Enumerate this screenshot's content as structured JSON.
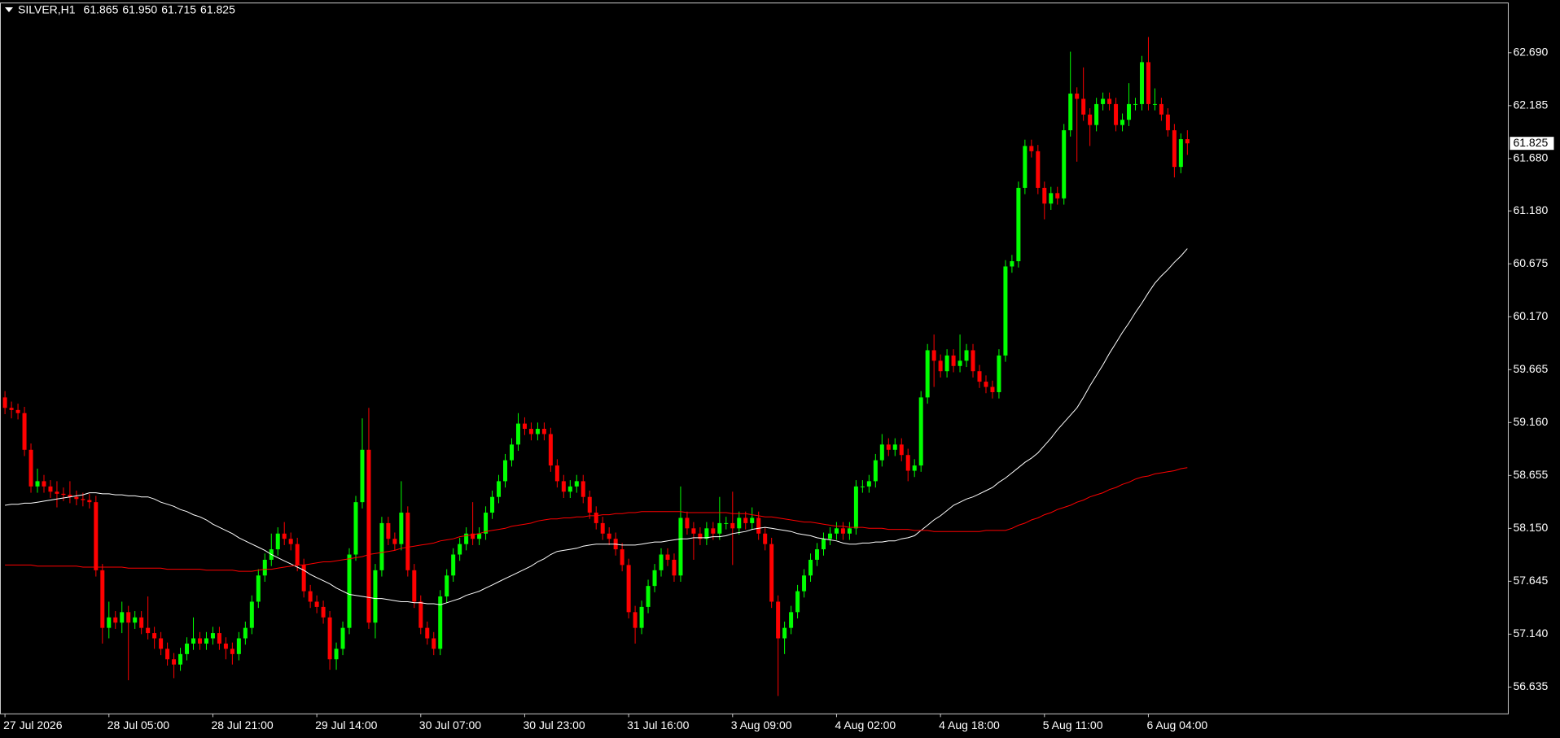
{
  "chart_data": {
    "type": "candlestick",
    "title": "SILVER,H1",
    "header_values": [
      "61.865",
      "61.950",
      "61.715",
      "61.825"
    ],
    "categories": [
      "27 Jul 2026",
      null,
      null,
      null,
      null,
      null,
      null,
      null,
      null,
      null,
      null,
      null,
      null,
      null,
      null,
      null,
      "28 Jul 05:00",
      null,
      null,
      null,
      null,
      null,
      null,
      null,
      null,
      null,
      null,
      null,
      null,
      null,
      null,
      null,
      "28 Jul 21:00",
      null,
      null,
      null,
      null,
      null,
      null,
      null,
      null,
      null,
      null,
      null,
      null,
      null,
      null,
      null,
      "29 Jul 14:00",
      null,
      null,
      null,
      null,
      null,
      null,
      null,
      null,
      null,
      null,
      null,
      null,
      null,
      null,
      null,
      "30 Jul 07:00",
      null,
      null,
      null,
      null,
      null,
      null,
      null,
      null,
      null,
      null,
      null,
      null,
      null,
      null,
      null,
      "30 Jul 23:00",
      null,
      null,
      null,
      null,
      null,
      null,
      null,
      null,
      null,
      null,
      null,
      null,
      null,
      null,
      null,
      "31 Jul 16:00",
      null,
      null,
      null,
      null,
      null,
      null,
      null,
      null,
      null,
      null,
      null,
      null,
      null,
      null,
      null,
      "3 Aug 09:00",
      null,
      null,
      null,
      null,
      null,
      null,
      null,
      null,
      null,
      null,
      null,
      null,
      null,
      null,
      null,
      "4 Aug 02:00",
      null,
      null,
      null,
      null,
      null,
      null,
      null,
      null,
      null,
      null,
      null,
      null,
      null,
      null,
      null,
      "4 Aug 18:00",
      null,
      null,
      null,
      null,
      null,
      null,
      null,
      null,
      null,
      null,
      null,
      null,
      null,
      null,
      null,
      "5 Aug 11:00",
      null,
      null,
      null,
      null,
      null,
      null,
      null,
      null,
      null,
      null,
      null,
      null,
      null,
      null,
      null,
      "6 Aug 04:00",
      null,
      null,
      null,
      null,
      null,
      null
    ],
    "open": [
      59.4,
      59.3,
      59.28,
      59.25,
      58.9,
      58.55,
      58.6,
      58.55,
      58.5,
      58.48,
      58.47,
      58.45,
      58.43,
      58.42,
      58.4,
      57.75,
      57.2,
      57.3,
      57.25,
      57.35,
      57.25,
      57.3,
      57.2,
      57.15,
      57.1,
      57.0,
      56.9,
      56.85,
      56.95,
      57.05,
      57.1,
      57.05,
      57.1,
      57.15,
      57.05,
      57.0,
      56.95,
      57.1,
      57.2,
      57.45,
      57.7,
      57.85,
      57.95,
      58.1,
      58.05,
      58.0,
      57.8,
      57.55,
      57.45,
      57.4,
      57.3,
      56.9,
      57.0,
      57.2,
      57.9,
      58.4,
      58.9,
      57.25,
      57.75,
      58.2,
      58.05,
      58.0,
      58.3,
      57.75,
      57.45,
      57.2,
      57.1,
      57.0,
      57.5,
      57.7,
      57.9,
      58.0,
      58.1,
      58.05,
      58.1,
      58.3,
      58.45,
      58.6,
      58.8,
      58.95,
      59.15,
      59.1,
      59.05,
      59.1,
      59.05,
      58.75,
      58.6,
      58.5,
      58.55,
      58.6,
      58.45,
      58.3,
      58.2,
      58.1,
      58.05,
      57.95,
      57.8,
      57.35,
      57.2,
      57.4,
      57.6,
      57.75,
      57.9,
      57.85,
      57.7,
      58.25,
      58.15,
      58.1,
      58.05,
      58.15,
      58.1,
      58.2,
      58.2,
      58.15,
      58.25,
      58.2,
      58.25,
      58.1,
      58.0,
      57.45,
      57.1,
      57.2,
      57.35,
      57.55,
      57.7,
      57.85,
      57.95,
      58.05,
      58.1,
      58.15,
      58.1,
      58.15,
      58.55,
      58.55,
      58.6,
      58.8,
      58.95,
      58.9,
      58.95,
      58.85,
      58.7,
      58.75,
      59.4,
      59.85,
      59.75,
      59.65,
      59.8,
      59.7,
      59.75,
      59.85,
      59.65,
      59.55,
      59.5,
      59.45,
      59.8,
      60.65,
      60.7,
      61.4,
      61.8,
      61.75,
      61.4,
      61.25,
      61.35,
      61.3,
      61.95,
      62.3,
      62.25,
      62.1,
      62.0,
      62.2,
      62.25,
      62.2,
      62.0,
      62.05,
      62.2,
      62.2,
      62.6,
      62.2,
      62.2,
      62.1,
      61.95,
      61.6,
      61.865
    ],
    "high": [
      59.46,
      59.36,
      59.34,
      59.31,
      58.96,
      58.72,
      58.66,
      58.61,
      58.6,
      58.54,
      58.6,
      58.51,
      58.49,
      58.48,
      58.46,
      57.81,
      57.45,
      57.36,
      57.45,
      57.41,
      57.36,
      57.36,
      57.5,
      57.21,
      57.16,
      57.06,
      56.96,
      57.01,
      57.11,
      57.3,
      57.16,
      57.16,
      57.21,
      57.21,
      57.11,
      57.06,
      57.16,
      57.26,
      57.51,
      57.76,
      57.91,
      58.1,
      58.16,
      58.21,
      58.11,
      58.06,
      57.86,
      57.61,
      57.51,
      57.46,
      57.36,
      57.06,
      57.26,
      57.96,
      58.46,
      59.2,
      59.3,
      57.81,
      58.26,
      58.26,
      58.11,
      58.6,
      58.36,
      57.81,
      57.51,
      57.26,
      57.16,
      57.56,
      57.76,
      57.96,
      58.06,
      58.16,
      58.4,
      58.16,
      58.36,
      58.51,
      58.66,
      58.86,
      59.01,
      59.25,
      59.21,
      59.16,
      59.16,
      59.16,
      59.11,
      58.81,
      58.66,
      58.61,
      58.66,
      58.66,
      58.51,
      58.36,
      58.26,
      58.16,
      58.11,
      58.01,
      57.86,
      57.41,
      57.46,
      57.66,
      57.81,
      57.96,
      57.96,
      57.91,
      58.55,
      58.31,
      58.21,
      58.16,
      58.21,
      58.21,
      58.45,
      58.26,
      58.5,
      58.31,
      58.31,
      58.35,
      58.31,
      58.16,
      58.06,
      57.51,
      57.26,
      57.41,
      57.61,
      57.76,
      57.91,
      58.01,
      58.11,
      58.16,
      58.21,
      58.21,
      58.21,
      58.61,
      58.61,
      58.66,
      58.86,
      59.05,
      59.01,
      59.01,
      59.01,
      58.91,
      58.81,
      59.46,
      59.91,
      60.0,
      59.81,
      59.86,
      59.86,
      60.0,
      59.91,
      59.91,
      59.71,
      59.61,
      59.56,
      59.86,
      60.71,
      60.76,
      61.46,
      61.86,
      61.86,
      61.81,
      61.46,
      61.41,
      61.41,
      62.01,
      62.7,
      62.36,
      62.55,
      62.16,
      62.26,
      62.31,
      62.31,
      62.26,
      62.11,
      62.4,
      62.26,
      62.66,
      62.84,
      62.35,
      62.26,
      62.16,
      62.01,
      61.92,
      61.95
    ],
    "low": [
      59.24,
      59.2,
      59.19,
      58.84,
      58.49,
      58.49,
      58.49,
      58.44,
      58.35,
      58.41,
      58.39,
      58.37,
      58.36,
      58.34,
      57.69,
      57.05,
      57.1,
      57.19,
      57.15,
      56.7,
      57.19,
      57.14,
      57.09,
      57.0,
      56.94,
      56.84,
      56.72,
      56.79,
      56.89,
      56.99,
      56.99,
      56.99,
      57.04,
      56.99,
      56.9,
      56.85,
      56.89,
      57.04,
      57.14,
      57.39,
      57.64,
      57.79,
      57.89,
      57.99,
      57.94,
      57.74,
      57.49,
      57.39,
      57.34,
      57.24,
      56.8,
      56.8,
      56.94,
      57.14,
      57.84,
      58.34,
      57.19,
      57.1,
      57.69,
      57.99,
      57.94,
      57.94,
      57.69,
      57.39,
      57.14,
      57.04,
      56.94,
      56.94,
      57.44,
      57.64,
      57.84,
      57.94,
      57.99,
      57.99,
      58.04,
      58.24,
      58.39,
      58.54,
      58.74,
      58.89,
      59.04,
      58.99,
      58.99,
      58.99,
      58.69,
      58.54,
      58.44,
      58.44,
      58.49,
      58.39,
      58.24,
      58.14,
      58.04,
      57.99,
      57.89,
      57.74,
      57.29,
      57.05,
      57.14,
      57.34,
      57.54,
      57.69,
      57.79,
      57.64,
      57.64,
      58.09,
      57.85,
      57.99,
      57.99,
      58.04,
      58.04,
      58.14,
      57.8,
      58.09,
      58.14,
      58.14,
      58.04,
      57.94,
      57.39,
      56.55,
      56.95,
      57.14,
      57.29,
      57.49,
      57.64,
      57.79,
      57.89,
      57.99,
      58.04,
      58.04,
      58.04,
      58.09,
      58.49,
      58.49,
      58.54,
      58.74,
      58.84,
      58.84,
      58.79,
      58.6,
      58.64,
      58.69,
      59.34,
      59.5,
      59.59,
      59.59,
      59.64,
      59.64,
      59.69,
      59.59,
      59.49,
      59.44,
      59.39,
      59.39,
      59.74,
      60.59,
      60.64,
      61.34,
      61.69,
      61.34,
      61.1,
      61.19,
      61.24,
      61.24,
      61.89,
      61.65,
      62.04,
      61.8,
      61.94,
      62.14,
      62.14,
      61.94,
      61.94,
      61.99,
      62.14,
      62.14,
      62.14,
      62.14,
      62.04,
      61.89,
      61.5,
      61.54,
      61.715
    ],
    "close": [
      59.3,
      59.28,
      59.25,
      58.9,
      58.55,
      58.6,
      58.55,
      58.5,
      58.48,
      58.47,
      58.45,
      58.43,
      58.42,
      58.4,
      57.75,
      57.2,
      57.3,
      57.25,
      57.35,
      57.25,
      57.3,
      57.2,
      57.15,
      57.1,
      57.0,
      56.9,
      56.85,
      56.95,
      57.05,
      57.1,
      57.05,
      57.1,
      57.15,
      57.05,
      57.0,
      56.95,
      57.1,
      57.2,
      57.45,
      57.7,
      57.85,
      57.95,
      58.1,
      58.05,
      58.0,
      57.8,
      57.55,
      57.45,
      57.4,
      57.3,
      56.9,
      57.0,
      57.2,
      57.9,
      58.4,
      58.9,
      57.25,
      57.75,
      58.2,
      58.05,
      58.0,
      58.3,
      57.75,
      57.45,
      57.2,
      57.1,
      57.0,
      57.5,
      57.7,
      57.9,
      58.0,
      58.1,
      58.05,
      58.1,
      58.3,
      58.45,
      58.6,
      58.8,
      58.95,
      59.15,
      59.1,
      59.05,
      59.1,
      59.05,
      58.75,
      58.6,
      58.5,
      58.55,
      58.6,
      58.45,
      58.3,
      58.2,
      58.1,
      58.05,
      57.95,
      57.8,
      57.35,
      57.2,
      57.4,
      57.6,
      57.75,
      57.9,
      57.85,
      57.7,
      58.25,
      58.15,
      58.1,
      58.05,
      58.15,
      58.1,
      58.2,
      58.2,
      58.15,
      58.25,
      58.2,
      58.25,
      58.1,
      58.0,
      57.45,
      57.1,
      57.2,
      57.35,
      57.55,
      57.7,
      57.85,
      57.95,
      58.05,
      58.1,
      58.15,
      58.1,
      58.15,
      58.55,
      58.55,
      58.6,
      58.8,
      58.95,
      58.9,
      58.95,
      58.85,
      58.7,
      58.75,
      59.4,
      59.85,
      59.75,
      59.65,
      59.8,
      59.7,
      59.75,
      59.85,
      59.65,
      59.55,
      59.5,
      59.45,
      59.8,
      60.65,
      60.7,
      61.4,
      61.8,
      61.75,
      61.4,
      61.25,
      61.35,
      61.3,
      61.95,
      62.3,
      62.25,
      62.1,
      62.0,
      62.2,
      62.25,
      62.2,
      62.0,
      62.05,
      62.2,
      62.2,
      62.6,
      62.2,
      62.2,
      62.1,
      61.95,
      61.6,
      61.865,
      61.825
    ],
    "up_color": "#00ff00",
    "down_color": "#ff0000",
    "lines": [
      {
        "color": "#ffffff",
        "values": [
          58.37,
          58.38,
          58.38,
          58.39,
          58.39,
          58.4,
          58.41,
          58.42,
          58.43,
          58.44,
          58.45,
          58.46,
          58.47,
          58.49,
          58.49,
          58.48,
          58.48,
          58.47,
          58.47,
          58.46,
          58.46,
          58.45,
          58.45,
          58.43,
          58.4,
          58.38,
          58.36,
          58.33,
          58.31,
          58.28,
          58.26,
          58.23,
          58.19,
          58.16,
          58.13,
          58.1,
          58.06,
          58.03,
          58.0,
          57.97,
          57.94,
          57.9,
          57.87,
          57.84,
          57.81,
          57.78,
          57.75,
          57.71,
          57.68,
          57.65,
          57.62,
          57.58,
          57.55,
          57.52,
          57.51,
          57.5,
          57.49,
          57.48,
          57.48,
          57.47,
          57.46,
          57.45,
          57.45,
          57.44,
          57.44,
          57.43,
          57.43,
          57.42,
          57.44,
          57.46,
          57.48,
          57.51,
          57.53,
          57.55,
          57.58,
          57.61,
          57.64,
          57.67,
          57.7,
          57.73,
          57.76,
          57.79,
          57.83,
          57.86,
          57.9,
          57.93,
          57.94,
          57.95,
          57.96,
          57.98,
          57.99,
          58.0,
          58.0,
          58.0,
          58.0,
          57.99,
          57.99,
          57.99,
          58.0,
          58.01,
          58.02,
          58.02,
          58.03,
          58.04,
          58.05,
          58.05,
          58.06,
          58.06,
          58.06,
          58.07,
          58.07,
          58.08,
          58.1,
          58.11,
          58.12,
          58.14,
          58.15,
          58.16,
          58.15,
          58.14,
          58.13,
          58.12,
          58.1,
          58.09,
          58.08,
          58.06,
          58.05,
          58.04,
          58.03,
          58.01,
          58.0,
          58.0,
          58.01,
          58.01,
          58.02,
          58.02,
          58.03,
          58.03,
          58.05,
          58.06,
          58.08,
          58.13,
          58.18,
          58.23,
          58.27,
          58.32,
          58.37,
          58.4,
          58.43,
          58.45,
          58.48,
          58.51,
          58.54,
          58.59,
          58.63,
          58.68,
          58.73,
          58.78,
          58.82,
          58.87,
          58.94,
          59.01,
          59.09,
          59.16,
          59.23,
          59.3,
          59.4,
          59.51,
          59.61,
          59.71,
          59.82,
          59.92,
          60.02,
          60.11,
          60.21,
          60.3,
          60.4,
          60.49,
          60.56,
          60.62,
          60.69,
          60.75,
          60.82
        ]
      },
      {
        "color": "#ff0000",
        "values": [
          57.8,
          57.8,
          57.8,
          57.8,
          57.8,
          57.79,
          57.79,
          57.79,
          57.79,
          57.79,
          57.79,
          57.79,
          57.78,
          57.78,
          57.78,
          57.78,
          57.78,
          57.78,
          57.78,
          57.77,
          57.77,
          57.77,
          57.77,
          57.77,
          57.77,
          57.76,
          57.76,
          57.76,
          57.76,
          57.76,
          57.76,
          57.75,
          57.75,
          57.75,
          57.75,
          57.75,
          57.74,
          57.74,
          57.74,
          57.75,
          57.76,
          57.76,
          57.77,
          57.78,
          57.79,
          57.8,
          57.8,
          57.81,
          57.82,
          57.83,
          57.83,
          57.84,
          57.85,
          57.86,
          57.87,
          57.88,
          57.9,
          57.91,
          57.92,
          57.93,
          57.94,
          57.96,
          57.97,
          57.98,
          57.99,
          58.0,
          58.01,
          58.03,
          58.04,
          58.05,
          58.07,
          58.08,
          58.09,
          58.1,
          58.12,
          58.13,
          58.14,
          58.15,
          58.17,
          58.18,
          58.19,
          58.2,
          58.22,
          58.23,
          58.24,
          58.24,
          58.25,
          58.25,
          58.26,
          58.26,
          58.27,
          58.27,
          58.28,
          58.28,
          58.29,
          58.29,
          58.3,
          58.3,
          58.31,
          58.31,
          58.31,
          58.31,
          58.31,
          58.31,
          58.31,
          58.3,
          58.3,
          58.3,
          58.3,
          58.3,
          58.3,
          58.3,
          58.29,
          58.29,
          58.29,
          58.28,
          58.27,
          58.26,
          58.26,
          58.25,
          58.24,
          58.23,
          58.22,
          58.21,
          58.21,
          58.2,
          58.19,
          58.18,
          58.17,
          58.17,
          58.16,
          58.16,
          58.16,
          58.15,
          58.15,
          58.15,
          58.14,
          58.14,
          58.14,
          58.14,
          58.13,
          58.13,
          58.13,
          58.12,
          58.12,
          58.12,
          58.12,
          58.12,
          58.12,
          58.12,
          58.12,
          58.13,
          58.13,
          58.13,
          58.13,
          58.15,
          58.18,
          58.2,
          58.23,
          58.25,
          58.28,
          58.3,
          58.33,
          58.35,
          58.37,
          58.4,
          58.42,
          58.45,
          58.47,
          58.49,
          58.52,
          58.54,
          58.57,
          58.59,
          58.62,
          58.64,
          58.65,
          58.67,
          58.68,
          58.69,
          58.7,
          58.72,
          58.73
        ]
      }
    ],
    "ylim": [
      56.379,
      63.165
    ],
    "yticks": [
      {
        "value": 62.69,
        "label": "62.690"
      },
      {
        "value": 62.185,
        "label": "62.185"
      },
      {
        "value": 61.68,
        "label": "61.680"
      },
      {
        "value": 61.18,
        "label": "61.180"
      },
      {
        "value": 60.675,
        "label": "60.675"
      },
      {
        "value": 60.17,
        "label": "60.170"
      },
      {
        "value": 59.665,
        "label": "59.665"
      },
      {
        "value": 59.16,
        "label": "59.160"
      },
      {
        "value": 58.655,
        "label": "58.655"
      },
      {
        "value": 58.15,
        "label": "58.150"
      },
      {
        "value": 57.645,
        "label": "57.645"
      },
      {
        "value": 57.14,
        "label": "57.140"
      },
      {
        "value": 56.635,
        "label": "56.635"
      }
    ],
    "grid": false,
    "background": "#000000",
    "axis_color": "#c8c8c8"
  }
}
